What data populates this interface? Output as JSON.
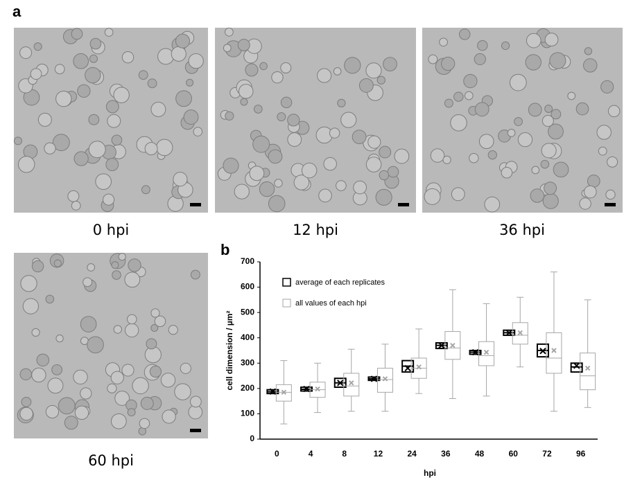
{
  "panel_a": {
    "label": "a",
    "images": [
      {
        "caption": "0 hpi"
      },
      {
        "caption": "12 hpi"
      },
      {
        "caption": "36 hpi"
      },
      {
        "caption": "60 hpi"
      }
    ]
  },
  "panel_b": {
    "label": "b"
  },
  "chart_data": {
    "type": "box",
    "x_label": "hpi",
    "y_label": "cell dimension / µm²",
    "categories": [
      "0",
      "4",
      "8",
      "12",
      "24",
      "36",
      "48",
      "60",
      "72",
      "96"
    ],
    "ylim": [
      0,
      700
    ],
    "yticks": [
      0,
      100,
      200,
      300,
      400,
      500,
      600,
      700
    ],
    "series": [
      {
        "name": "average of each replicates",
        "color": "#000000",
        "q1": [
          180,
          190,
          205,
          232,
          265,
          358,
          335,
          410,
          325,
          265
        ],
        "median": [
          187,
          197,
          222,
          238,
          288,
          370,
          343,
          420,
          350,
          285
        ],
        "q3": [
          195,
          205,
          240,
          245,
          310,
          380,
          350,
          430,
          375,
          300
        ],
        "mean": [
          188,
          198,
          222,
          238,
          280,
          370,
          343,
          420,
          348,
          290
        ]
      },
      {
        "name": "all values of each hpi",
        "color": "#a6a6a6",
        "min": [
          60,
          105,
          110,
          110,
          180,
          160,
          170,
          285,
          110,
          125
        ],
        "q1": [
          150,
          165,
          170,
          185,
          240,
          315,
          290,
          375,
          260,
          195
        ],
        "median": [
          185,
          195,
          210,
          235,
          280,
          360,
          330,
          410,
          320,
          250
        ],
        "q3": [
          215,
          225,
          260,
          280,
          320,
          425,
          385,
          460,
          420,
          340
        ],
        "max": [
          310,
          300,
          355,
          375,
          435,
          590,
          535,
          560,
          660,
          550
        ],
        "mean": [
          185,
          198,
          222,
          238,
          285,
          370,
          343,
          420,
          350,
          280
        ]
      }
    ]
  }
}
